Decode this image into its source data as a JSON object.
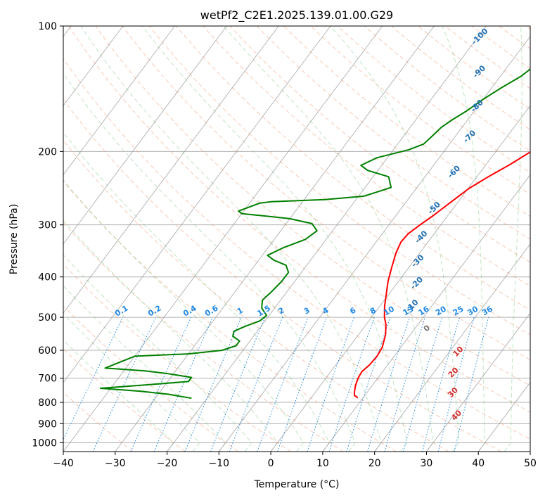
{
  "chart_data": {
    "type": "line",
    "subtype": "skew-t log-p",
    "title": "wetPf2_C2E1.2025.139.01.00.G29",
    "xlabel": "Temperature (°C)",
    "ylabel": "Pressure (hPa)",
    "xlim": [
      -40,
      50
    ],
    "ylim": [
      1050,
      100
    ],
    "y_scale": "log",
    "x_ticks": [
      -40,
      -30,
      -20,
      -10,
      0,
      10,
      20,
      30,
      40,
      50
    ],
    "x_tick_labels": [
      "−40",
      "−30",
      "−20",
      "−10",
      "0",
      "10",
      "20",
      "30",
      "40",
      "50"
    ],
    "y_ticks": [
      1000,
      900,
      800,
      700,
      600,
      500,
      400,
      300,
      200,
      100
    ],
    "y_tick_labels": [
      "1000",
      "900",
      "800",
      "700",
      "600",
      "500",
      "400",
      "300",
      "200",
      "100"
    ],
    "grid": true,
    "colors": {
      "temperature": "#ff0000",
      "dewpoint": "#008000",
      "dry_adiabat": "#f4a582",
      "moist_adiabat": "#74c476",
      "mixing_ratio": "#1e88e5",
      "isotherm": "#999999",
      "mixing_ratio_label": "#1e88e5",
      "dry_adiabat_label": "#1f6fb4",
      "moist_adiabat_label": "#d32f2f"
    },
    "series": [
      {
        "key": "temperature",
        "points": [
          [
            9.0,
            780
          ],
          [
            8.0,
            770
          ],
          [
            7.5,
            755
          ],
          [
            6.8,
            730
          ],
          [
            6.2,
            700
          ],
          [
            6.0,
            675
          ],
          [
            6.5,
            650
          ],
          [
            6.7,
            620
          ],
          [
            6.4,
            590
          ],
          [
            5.2,
            550
          ],
          [
            3.8,
            520
          ],
          [
            2.5,
            500
          ],
          [
            0.9,
            470
          ],
          [
            -0.5,
            440
          ],
          [
            -2.0,
            410
          ],
          [
            -3.3,
            380
          ],
          [
            -4.6,
            350
          ],
          [
            -5.2,
            330
          ],
          [
            -5.0,
            315
          ],
          [
            -4.0,
            300
          ],
          [
            -2.8,
            285
          ],
          [
            -1.4,
            265
          ],
          [
            0.2,
            245
          ],
          [
            2.2,
            230
          ],
          [
            4.6,
            215
          ],
          [
            6.8,
            200
          ],
          [
            9.3,
            185
          ],
          [
            12.0,
            172
          ],
          [
            14.8,
            160
          ],
          [
            16.6,
            148
          ],
          [
            18.0,
            138
          ],
          [
            18.5,
            130
          ],
          [
            18.8,
            123
          ],
          [
            20.0,
            118
          ],
          [
            22.0,
            113
          ],
          [
            23.6,
            108
          ],
          [
            24.5,
            104
          ],
          [
            25.0,
            100
          ]
        ]
      },
      {
        "key": "dewpoint",
        "points": [
          [
            -23.0,
            782
          ],
          [
            -28.0,
            765
          ],
          [
            -34.0,
            752
          ],
          [
            -42.0,
            740
          ],
          [
            -34.0,
            727
          ],
          [
            -26.0,
            713
          ],
          [
            -26.0,
            697
          ],
          [
            -31.0,
            683
          ],
          [
            -36.0,
            672
          ],
          [
            -44.0,
            662
          ],
          [
            -40.0,
            620
          ],
          [
            -30.0,
            612
          ],
          [
            -24.0,
            600
          ],
          [
            -22.0,
            585
          ],
          [
            -22.0,
            570
          ],
          [
            -24.0,
            555
          ],
          [
            -24.5,
            540
          ],
          [
            -23.0,
            525
          ],
          [
            -21.0,
            510
          ],
          [
            -20.5,
            495
          ],
          [
            -22.5,
            475
          ],
          [
            -23.5,
            455
          ],
          [
            -23.0,
            435
          ],
          [
            -22.5,
            410
          ],
          [
            -22.5,
            390
          ],
          [
            -24.0,
            375
          ],
          [
            -27.0,
            365
          ],
          [
            -29.0,
            355
          ],
          [
            -27.0,
            340
          ],
          [
            -24.0,
            325
          ],
          [
            -23.0,
            310
          ],
          [
            -25.0,
            298
          ],
          [
            -30.0,
            290
          ],
          [
            -36.0,
            285
          ],
          [
            -40.0,
            282
          ],
          [
            -41.0,
            278
          ],
          [
            -38.0,
            266
          ],
          [
            -36.0,
            264
          ],
          [
            -26.0,
            261
          ],
          [
            -19.0,
            256
          ],
          [
            -17.0,
            250
          ],
          [
            -15.0,
            244
          ],
          [
            -17.0,
            230
          ],
          [
            -22.0,
            222
          ],
          [
            -24.0,
            216
          ],
          [
            -22.0,
            207
          ],
          [
            -17.0,
            198
          ],
          [
            -15.0,
            192
          ],
          [
            -14.5,
            184
          ],
          [
            -14.0,
            175
          ],
          [
            -13.0,
            168
          ],
          [
            -11.5,
            160
          ],
          [
            -10.0,
            150
          ],
          [
            -8.0,
            140
          ],
          [
            -6.0,
            132
          ],
          [
            -5.0,
            125
          ],
          [
            -4.5,
            120
          ],
          [
            -4.0,
            115
          ],
          [
            -3.5,
            110
          ],
          [
            -2.5,
            105
          ],
          [
            -1.5,
            100
          ]
        ]
      }
    ],
    "mixing_ratio_labels": [
      "0.1",
      "0.2",
      "0.4",
      "0.6",
      "1",
      "1.5",
      "2",
      "3",
      "4",
      "6",
      "8",
      "10",
      "13",
      "16",
      "20",
      "25",
      "30",
      "36"
    ],
    "mixing_ratio_values": [
      0.1,
      0.2,
      0.4,
      0.6,
      1,
      1.5,
      2,
      3,
      4,
      6,
      8,
      10,
      13,
      16,
      20,
      25,
      30,
      36
    ],
    "dry_adiabat_labels": [
      {
        "text": "-100",
        "t": -11.0,
        "p": 107
      },
      {
        "text": "-90",
        "t": -6.0,
        "p": 130
      },
      {
        "text": "-80",
        "t": -1.5,
        "p": 157
      },
      {
        "text": "-70",
        "t": 1.5,
        "p": 186
      },
      {
        "text": "-60",
        "t": 3.6,
        "p": 226
      },
      {
        "text": "-50",
        "t": 5.0,
        "p": 276
      },
      {
        "text": "-40",
        "t": 6.7,
        "p": 324
      },
      {
        "text": "-30",
        "t": 9.5,
        "p": 370
      },
      {
        "text": "-20",
        "t": 12.5,
        "p": 418
      },
      {
        "text": "-10",
        "t": 14.9,
        "p": 474
      },
      {
        "text": "0",
        "t": 21.0,
        "p": 537
      }
    ],
    "moist_adiabat_labels": [
      {
        "text": "10",
        "t": 23.6,
        "p": 610
      },
      {
        "text": "20",
        "t": 25.7,
        "p": 685
      },
      {
        "text": "30",
        "t": 28.5,
        "p": 765
      },
      {
        "text": "40",
        "t": 32.5,
        "p": 868
      }
    ]
  }
}
